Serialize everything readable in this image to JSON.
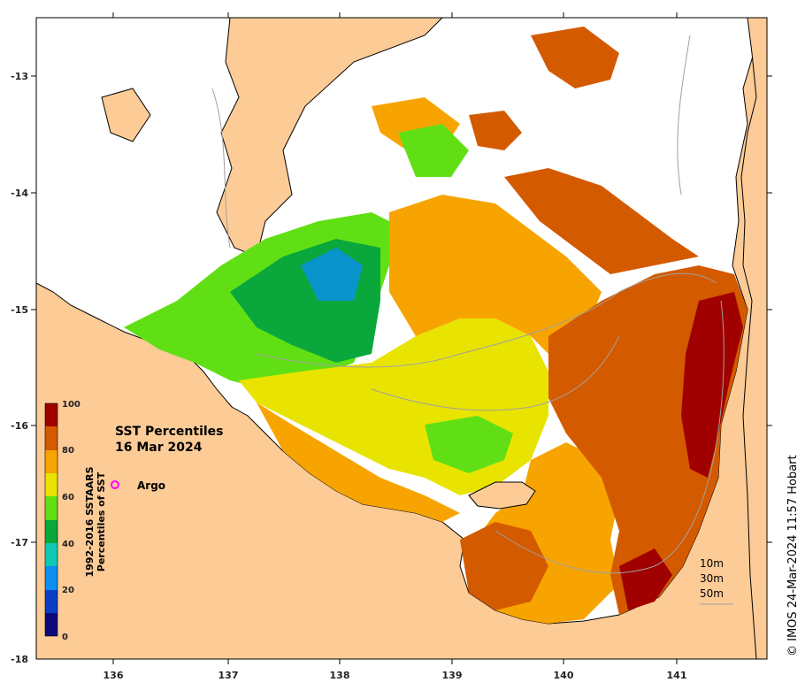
{
  "title": "SST Percentiles",
  "date": "16 Mar 2024",
  "credit": "© IMOS 24-Mar-2024 11:57 Hobart",
  "colorbar": {
    "label_line1": "1992-2016 SSTAARS",
    "label_line2": "Percentiles of SST",
    "ticks": [
      "0",
      "20",
      "40",
      "60",
      "80",
      "100"
    ],
    "colors": [
      "#0a0a78",
      "#0b3cc4",
      "#0a8ef0",
      "#0fc8b4",
      "#0aa83c",
      "#60e014",
      "#e8e400",
      "#f8a400",
      "#d45a00",
      "#a00000"
    ]
  },
  "axes": {
    "x_ticks": [
      "136",
      "137",
      "138",
      "139",
      "140",
      "141"
    ],
    "y_ticks": [
      "-13",
      "-14",
      "-15",
      "-16",
      "-17",
      "-18"
    ]
  },
  "legend": {
    "argo_label": "Argo",
    "argo_color": "#ff00ff"
  },
  "depth_contours": [
    "10m",
    "30m",
    "50m"
  ],
  "colors": {
    "land": "#fccb96",
    "no_data": "#ffffff",
    "coast": "#000000",
    "contour": "#a0a0a0"
  }
}
